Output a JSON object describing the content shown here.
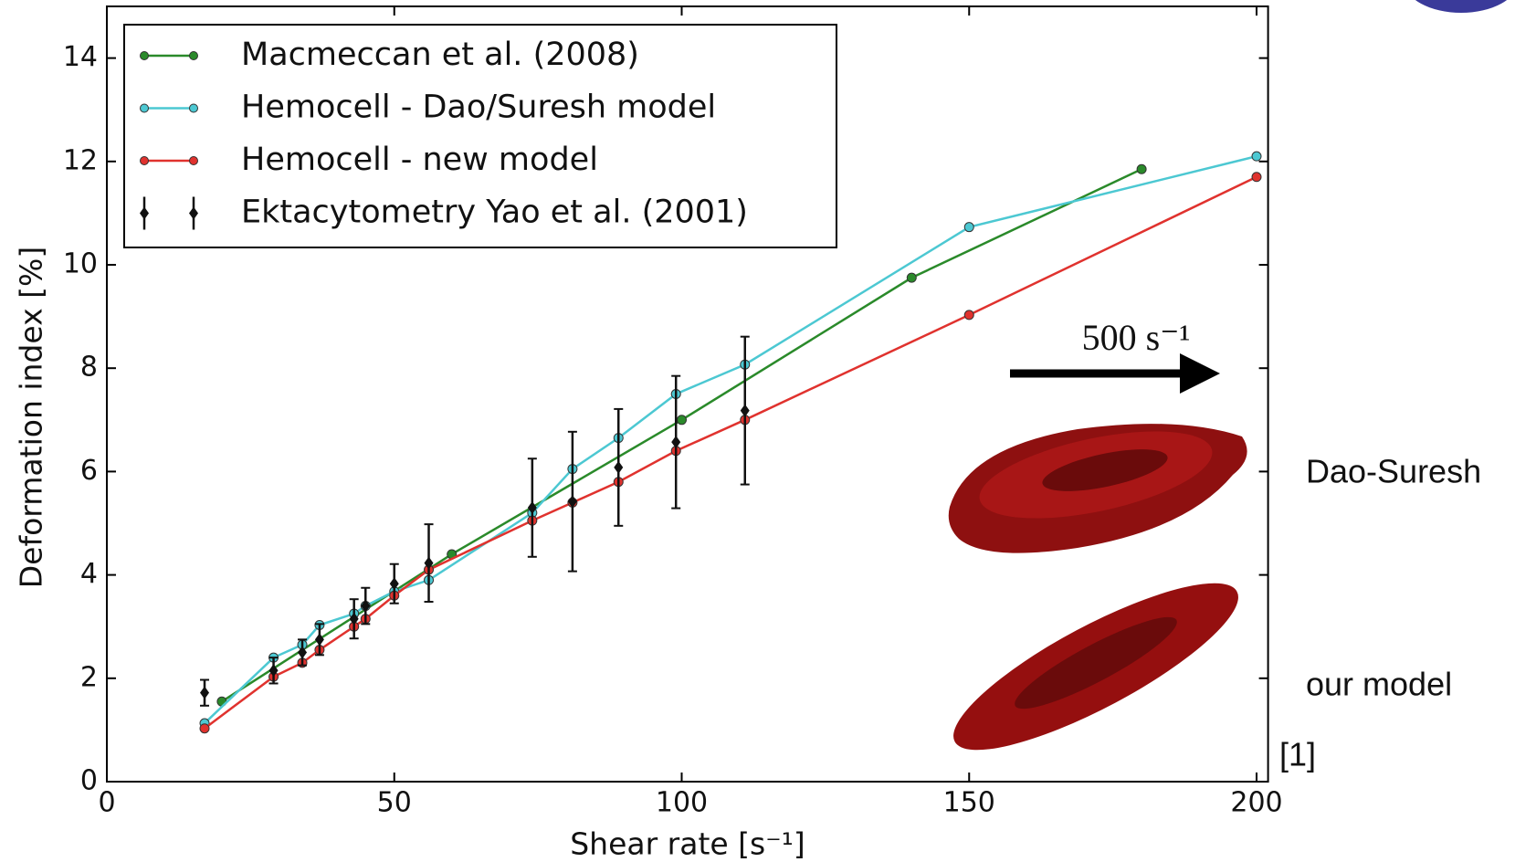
{
  "chart_data": {
    "type": "line",
    "xlabel": "Shear rate [s⁻¹]",
    "ylabel": "Deformation index [%]",
    "xlim": [
      0,
      202
    ],
    "ylim": [
      0,
      15
    ],
    "xticks": [
      0,
      50,
      100,
      150,
      200
    ],
    "yticks": [
      0,
      2,
      4,
      6,
      8,
      10,
      12,
      14
    ],
    "legend": "upper left",
    "series": [
      {
        "name": "Macmeccan et al. (2008)",
        "color": "#2a8a2a",
        "x": [
          20,
          60,
          100,
          140,
          180
        ],
        "values": [
          1.55,
          4.4,
          7.0,
          9.75,
          11.85
        ]
      },
      {
        "name": "Hemocell - Dao/Suresh model",
        "color": "#4cc8d2",
        "x": [
          17,
          29,
          34,
          37,
          43,
          45,
          50,
          56,
          74,
          81,
          89,
          99,
          111,
          150,
          200
        ],
        "values": [
          1.13,
          2.4,
          2.65,
          3.03,
          3.25,
          3.4,
          3.68,
          3.9,
          5.2,
          6.05,
          6.65,
          7.5,
          8.07,
          10.73,
          12.1
        ]
      },
      {
        "name": "Hemocell - new model",
        "color": "#e0322e",
        "x": [
          17,
          29,
          34,
          37,
          43,
          45,
          50,
          56,
          74,
          81,
          89,
          99,
          111,
          150,
          200
        ],
        "values": [
          1.03,
          2.03,
          2.3,
          2.55,
          3.0,
          3.15,
          3.6,
          4.1,
          5.05,
          5.4,
          5.8,
          6.4,
          7.0,
          9.03,
          11.7
        ]
      },
      {
        "name": "Ektacytometry Yao et al. (2001)",
        "color": "#111111",
        "x": [
          17,
          29,
          34,
          37,
          43,
          45,
          50,
          56,
          74,
          81,
          89,
          99,
          111
        ],
        "values": [
          1.72,
          2.15,
          2.5,
          2.75,
          3.15,
          3.4,
          3.83,
          4.23,
          5.3,
          5.42,
          6.08,
          6.57,
          7.18
        ],
        "errors": [
          0.25,
          0.25,
          0.25,
          0.3,
          0.38,
          0.35,
          0.38,
          0.75,
          0.95,
          1.35,
          1.13,
          1.28,
          1.43
        ]
      }
    ],
    "annotations": [
      "500 s⁻¹",
      "Dao-Suresh",
      "our model",
      "[1]"
    ]
  }
}
